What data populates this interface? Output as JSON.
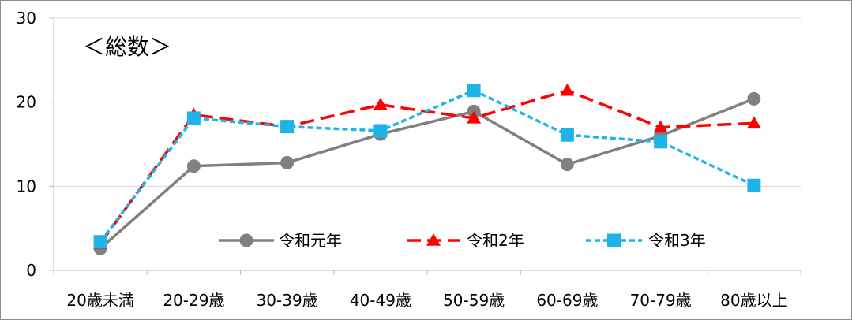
{
  "chart_data": {
    "type": "line",
    "annotation": "＜総数＞",
    "categories": [
      "20歳未満",
      "20-29歳",
      "30-39歳",
      "40-49歳",
      "50-59歳",
      "60-69歳",
      "70-79歳",
      "80歳以上"
    ],
    "ylim": [
      0,
      30
    ],
    "yticks": [
      "0",
      "10",
      "20",
      "30"
    ],
    "grid": true,
    "legend_position": "lower-center",
    "series": [
      {
        "name": "令和元年",
        "color": "#808080",
        "marker": "circle",
        "dash": "solid",
        "values": [
          2.6,
          12.4,
          12.8,
          16.2,
          18.9,
          12.6,
          16.0,
          20.4
        ]
      },
      {
        "name": "令和2年",
        "color": "#ff0000",
        "marker": "triangle",
        "dash": "dashed",
        "values": [
          3.2,
          18.5,
          17.1,
          19.7,
          18.1,
          21.4,
          17.0,
          17.5
        ]
      },
      {
        "name": "令和3年",
        "color": "#1fb4e8",
        "marker": "square",
        "dash": "dotted",
        "values": [
          3.4,
          18.1,
          17.1,
          16.6,
          21.4,
          16.1,
          15.3,
          10.1
        ]
      }
    ]
  }
}
